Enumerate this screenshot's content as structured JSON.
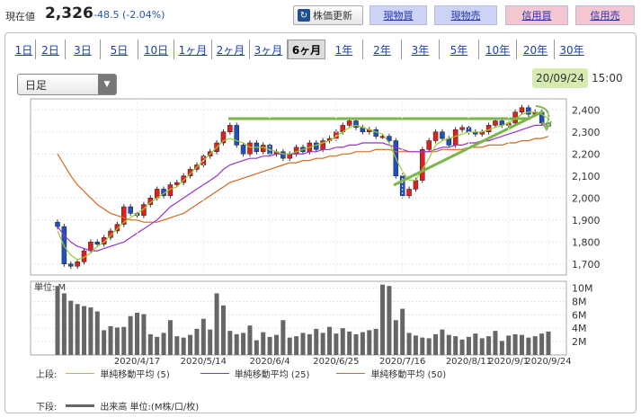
{
  "header": {
    "price_label": "現在値",
    "price": "2,326",
    "change": "-48.5 (-2.04%)",
    "refresh_label": "株価更新",
    "buttons": [
      "現物買",
      "現物売",
      "信用買",
      "信用売"
    ]
  },
  "period_tabs": [
    "1日",
    "2日",
    "3日",
    "5日",
    "10日",
    "1ヶ月",
    "2ヶ月",
    "3ヶ月",
    "6ヶ月",
    "1年",
    "2年",
    "3年",
    "5年",
    "10年",
    "20年",
    "30年"
  ],
  "active_tab": "6ヶ月",
  "chart_type_select": "日足",
  "as_of_date": "20/09/24",
  "as_of_time": "15:00",
  "colors": {
    "up": "#e02020",
    "down": "#2050c0",
    "ma5": "#9acd32",
    "ma25": "#9932cc",
    "ma50": "#d2691e",
    "annotation": "#7ab648",
    "volume": "#666666"
  },
  "legend": {
    "upper_label": "上段:",
    "ma5_label": "単純移動平均 (5)",
    "ma25_label": "単純移動平均 (25)",
    "ma50_label": "単純移動平均 (50)",
    "lower_label": "下段:",
    "volume_label": "出来高 単位:(M株/口/枚)"
  },
  "chart_data": {
    "type": "line",
    "price_panel": {
      "y_ticks": [
        "2,400",
        "2,300",
        "2,200",
        "2,100",
        "2,000",
        "1,900",
        "1,800",
        "1,700"
      ],
      "ylim": [
        1650,
        2450
      ],
      "close_series": [
        1870,
        1700,
        1690,
        1710,
        1760,
        1800,
        1790,
        1820,
        1850,
        1880,
        1960,
        1930,
        1920,
        1970,
        2000,
        2040,
        2010,
        2060,
        2070,
        2100,
        2130,
        2150,
        2190,
        2210,
        2250,
        2300,
        2330,
        2240,
        2200,
        2250,
        2210,
        2240,
        2200,
        2210,
        2180,
        2200,
        2230,
        2210,
        2250,
        2220,
        2260,
        2270,
        2300,
        2330,
        2350,
        2320,
        2300,
        2310,
        2280,
        2280,
        2260,
        2100,
        2010,
        2040,
        2080,
        2220,
        2260,
        2300,
        2270,
        2240,
        2310,
        2320,
        2300,
        2290,
        2300,
        2330,
        2350,
        2330,
        2340,
        2390,
        2410,
        2380,
        2390,
        2340,
        2326
      ],
      "ma5_series": [
        1850,
        1780,
        1740,
        1720,
        1730,
        1750,
        1780,
        1800,
        1830,
        1860,
        1890,
        1910,
        1930,
        1950,
        1980,
        2000,
        2020,
        2040,
        2050,
        2080,
        2110,
        2140,
        2170,
        2200,
        2230,
        2260,
        2270,
        2260,
        2250,
        2230,
        2230,
        2230,
        2220,
        2210,
        2200,
        2200,
        2210,
        2220,
        2230,
        2240,
        2250,
        2260,
        2280,
        2300,
        2320,
        2330,
        2320,
        2310,
        2300,
        2290,
        2250,
        2180,
        2120,
        2080,
        2080,
        2130,
        2180,
        2240,
        2260,
        2270,
        2280,
        2290,
        2300,
        2300,
        2300,
        2310,
        2320,
        2330,
        2340,
        2360,
        2380,
        2390,
        2390,
        2380,
        2360
      ],
      "ma25_series": [
        1870,
        1830,
        1800,
        1780,
        1770,
        1760,
        1760,
        1770,
        1780,
        1790,
        1800,
        1820,
        1840,
        1860,
        1880,
        1900,
        1930,
        1960,
        1980,
        2000,
        2020,
        2040,
        2060,
        2080,
        2100,
        2130,
        2150,
        2160,
        2170,
        2180,
        2180,
        2190,
        2190,
        2200,
        2200,
        2200,
        2200,
        2200,
        2210,
        2210,
        2220,
        2220,
        2230,
        2230,
        2240,
        2240,
        2250,
        2250,
        2250,
        2250,
        2240,
        2230,
        2220,
        2210,
        2210,
        2210,
        2210,
        2220,
        2230,
        2230,
        2240,
        2240,
        2250,
        2250,
        2260,
        2260,
        2270,
        2280,
        2290,
        2300,
        2310,
        2320,
        2330,
        2330,
        2340
      ],
      "ma50_series": [
        2200,
        2150,
        2100,
        2060,
        2030,
        2000,
        1970,
        1950,
        1930,
        1920,
        1910,
        1900,
        1900,
        1890,
        1890,
        1890,
        1900,
        1910,
        1920,
        1930,
        1950,
        1970,
        1990,
        2010,
        2030,
        2050,
        2070,
        2080,
        2090,
        2100,
        2110,
        2120,
        2130,
        2140,
        2150,
        2160,
        2160,
        2170,
        2170,
        2180,
        2180,
        2190,
        2190,
        2200,
        2200,
        2210,
        2210,
        2210,
        2220,
        2220,
        2220,
        2210,
        2210,
        2210,
        2210,
        2210,
        2210,
        2210,
        2220,
        2220,
        2220,
        2220,
        2230,
        2230,
        2230,
        2240,
        2240,
        2240,
        2250,
        2250,
        2260,
        2260,
        2270,
        2270,
        2280
      ]
    },
    "volume_panel": {
      "unit_label": "単位: M",
      "y_ticks": [
        "10M",
        "8M",
        "6M",
        "4M",
        "2M"
      ],
      "ylim": [
        0,
        11
      ],
      "values": [
        10.3,
        9.2,
        8.1,
        7.6,
        7.3,
        7.1,
        6.5,
        3.7,
        4.3,
        4.1,
        4.2,
        5.8,
        6.3,
        6.1,
        3.1,
        2.7,
        3.3,
        5.2,
        2.8,
        2.6,
        3.0,
        3.9,
        5.4,
        3.8,
        9.2,
        7.4,
        3.6,
        3.1,
        3.3,
        4.4,
        2.2,
        3.4,
        2.7,
        3.0,
        5.2,
        2.6,
        2.8,
        3.3,
        3.1,
        3.9,
        3.3,
        4.2,
        3.2,
        4.0,
        3.5,
        3.1,
        3.4,
        3.7,
        3.9,
        10.5,
        10.3,
        5.2,
        6.9,
        3.3,
        2.9,
        2.6,
        2.5,
        3.1,
        3.8,
        3.0,
        2.8,
        2.3,
        2.7,
        3.2,
        2.5,
        2.8,
        3.6,
        2.1,
        2.9,
        3.1,
        3.0,
        2.6,
        2.8,
        3.2,
        3.5
      ]
    },
    "x_ticks": [
      "2020/4/17",
      "2020/5/14",
      "2020/6/4",
      "2020/6/25",
      "2020/7/16",
      "2020/8/11",
      "2020/9/1",
      "2020/9/24"
    ]
  }
}
